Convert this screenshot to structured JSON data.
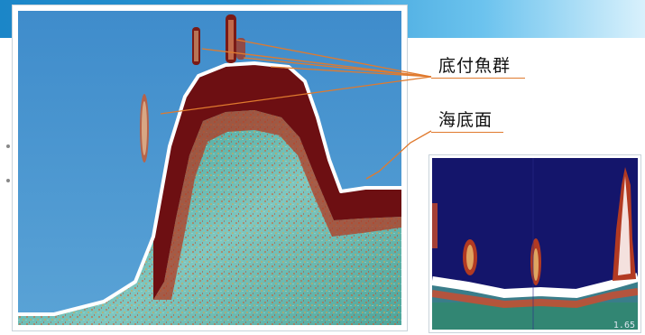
{
  "callouts": {
    "fish_on_bottom": "底付魚群",
    "seabed": "海底面"
  },
  "colors": {
    "water": "#4a95cf",
    "seabed_band": "#6d0f12",
    "bottom_line": "#ffffff",
    "callout_line": "#e07a2e",
    "inset_water": "#14156b",
    "header_gradient_start": "#1b86c8",
    "header_gradient_end": "#d9f1fc"
  },
  "inset": {
    "corner_label": "1.65"
  }
}
